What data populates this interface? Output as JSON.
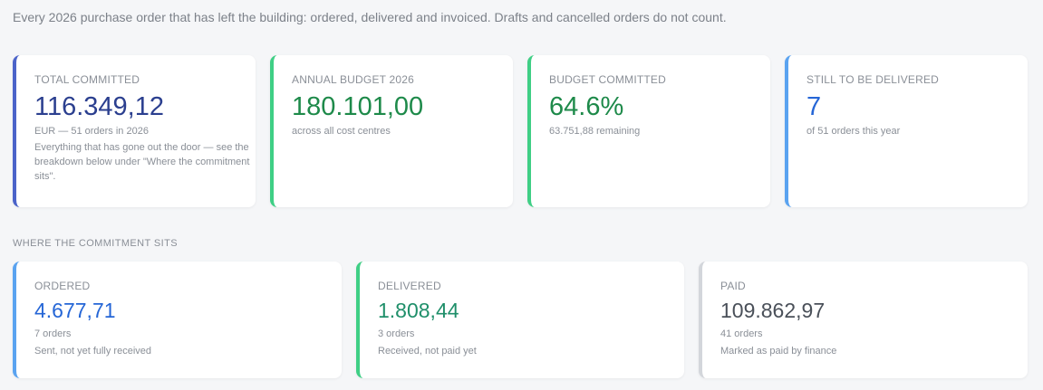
{
  "intro": "Every 2026 purchase order that has left the building: ordered, delivered and invoiced. Drafts and cancelled orders do not count.",
  "colors": {
    "navy": "#2b3f8f",
    "green": "#1e8a4a",
    "blue": "#2566d6",
    "teal": "#1f8f6a",
    "gray": "#4a5059",
    "border_navy": "#4b63c9",
    "border_green": "#3fcf85",
    "border_blue": "#5aa3f0",
    "border_gray": "#d3d6db"
  },
  "summary": [
    {
      "label": "TOTAL COMMITTED",
      "value": "116.349,12",
      "sub": "EUR — 51 orders in 2026",
      "note": "Everything that has gone out the door — see the breakdown below under \"Where the commitment sits\"."
    },
    {
      "label": "ANNUAL BUDGET 2026",
      "value": "180.101,00",
      "sub": "across all cost centres"
    },
    {
      "label": "BUDGET COMMITTED",
      "value": "64.6%",
      "sub": "63.751,88 remaining"
    },
    {
      "label": "STILL TO BE DELIVERED",
      "value": "7",
      "sub": "of 51 orders this year"
    }
  ],
  "section_title": "WHERE THE COMMITMENT SITS",
  "breakdown": [
    {
      "label": "ORDERED",
      "value": "4.677,71",
      "count": "7 orders",
      "desc": "Sent, not yet fully received"
    },
    {
      "label": "DELIVERED",
      "value": "1.808,44",
      "count": "3 orders",
      "desc": "Received, not paid yet"
    },
    {
      "label": "PAID",
      "value": "109.862,97",
      "count": "41 orders",
      "desc": "Marked as paid by finance"
    }
  ]
}
